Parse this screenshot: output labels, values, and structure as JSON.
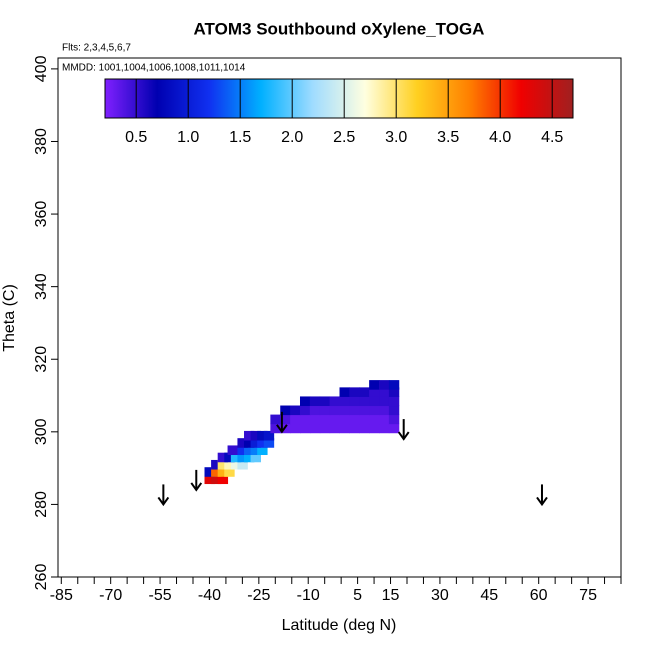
{
  "chart_data": {
    "type": "curtain",
    "title": "ATOM3 Southbound oXylene_TOGA",
    "flights_label": "Flts: 2,3,4,5,6,7",
    "dates_label": "MMDD: 1001,1004,1006,1008,1011,1014",
    "x_label": "Latitude (deg N)",
    "y_label": "Theta (C)",
    "xlim": [
      -86,
      85
    ],
    "ylim": [
      260,
      403
    ],
    "xticks": [
      -85,
      -70,
      -55,
      -40,
      -25,
      -10,
      5,
      15,
      30,
      45,
      60,
      75
    ],
    "xminorticks": [
      -80,
      -75,
      -65,
      -60,
      -50,
      -45,
      -35,
      -30,
      -20,
      -15,
      -5,
      0,
      10,
      20,
      25,
      35,
      40,
      50,
      55,
      65,
      70,
      80,
      85
    ],
    "yticks": [
      260,
      280,
      300,
      320,
      340,
      360,
      380,
      400
    ],
    "colorbar": {
      "lim": [
        0.2,
        4.7
      ],
      "ticks": [
        {
          "value": 0.5,
          "label": "0.5"
        },
        {
          "value": 1,
          "label": "1.0"
        },
        {
          "value": 1.5,
          "label": "1.5"
        },
        {
          "value": 2,
          "label": "2.0"
        },
        {
          "value": 2.5,
          "label": "2.5"
        },
        {
          "value": 3,
          "label": "3.0"
        },
        {
          "value": 3.5,
          "label": "3.5"
        },
        {
          "value": 4,
          "label": "4.0"
        },
        {
          "value": 4.5,
          "label": "4.5"
        }
      ],
      "colors": [
        "#8020ff",
        "#0000b0",
        "#1030f0",
        "#00b0ff",
        "#a0dcff",
        "#ffffe0",
        "#ffd020",
        "#ff8000",
        "#f00000",
        "#a02020"
      ]
    },
    "lat": [
      -40,
      -38,
      -36,
      -40,
      -38,
      -36,
      -34,
      -38,
      -36,
      -34,
      -32,
      -30,
      -36,
      -34,
      -32,
      -30,
      -28,
      -26,
      -33,
      -30,
      -28,
      -26,
      -24,
      -30,
      -28,
      -26,
      -24,
      -22,
      -28,
      -26,
      -24,
      -22,
      -20,
      -17,
      -14,
      -11,
      -8,
      -5,
      -2,
      1,
      4,
      7,
      10,
      13,
      16,
      -20,
      -17,
      -14,
      -11,
      -8,
      -5,
      -2,
      1,
      4,
      7,
      10,
      13,
      16,
      -17,
      -14,
      -11,
      -8,
      -5,
      -2,
      1,
      4,
      7,
      10,
      13,
      16,
      -11,
      -8,
      -5,
      -2,
      1,
      4,
      7,
      10,
      13,
      16,
      1,
      4,
      7,
      10,
      13,
      16,
      10,
      13,
      16
    ],
    "theta": [
      287,
      287,
      287,
      289,
      289,
      289,
      289,
      291,
      291,
      291,
      291,
      291,
      293,
      293,
      293,
      293,
      293,
      293,
      295,
      295,
      295,
      295,
      295,
      297,
      297,
      297,
      297,
      297,
      299,
      299,
      299,
      299,
      301,
      301,
      301,
      301,
      301,
      301,
      301,
      301,
      301,
      301,
      301,
      301,
      301,
      303.5,
      303.5,
      303.5,
      303.5,
      303.5,
      303.5,
      303.5,
      303.5,
      303.5,
      303.5,
      303.5,
      303.5,
      303.5,
      306,
      306,
      306,
      306,
      306,
      306,
      306,
      306,
      306,
      306,
      306,
      306,
      308.5,
      308.5,
      308.5,
      308.5,
      308.5,
      308.5,
      308.5,
      308.5,
      308.5,
      308.5,
      311,
      311,
      311,
      311,
      311,
      311,
      313,
      313,
      313
    ],
    "values": [
      4.3,
      4.4,
      4.2,
      0.8,
      3.8,
      3.4,
      3.1,
      0.6,
      3.0,
      2.8,
      2.6,
      2.4,
      0.5,
      0.8,
      1.8,
      1.6,
      1.7,
      2.0,
      0.5,
      1.2,
      1.4,
      1.5,
      1.7,
      0.6,
      0.7,
      1.0,
      1.2,
      1.3,
      0.5,
      0.6,
      0.8,
      0.9,
      0.4,
      0.3,
      0.3,
      0.3,
      0.3,
      0.3,
      0.3,
      0.3,
      0.3,
      0.3,
      0.3,
      0.3,
      0.3,
      0.5,
      0.4,
      0.3,
      0.3,
      0.3,
      0.3,
      0.3,
      0.3,
      0.3,
      0.3,
      0.3,
      0.3,
      0.4,
      0.7,
      0.6,
      0.5,
      0.4,
      0.4,
      0.4,
      0.4,
      0.4,
      0.4,
      0.4,
      0.4,
      0.5,
      0.7,
      0.6,
      0.6,
      0.5,
      0.5,
      0.5,
      0.5,
      0.5,
      0.5,
      0.5,
      0.7,
      0.6,
      0.6,
      0.5,
      0.5,
      0.6,
      0.7,
      0.6,
      0.8
    ],
    "markers": {
      "lat": [
        -54,
        -44,
        -18,
        19,
        61
      ],
      "theta": [
        280,
        284,
        300,
        298,
        280
      ]
    }
  }
}
